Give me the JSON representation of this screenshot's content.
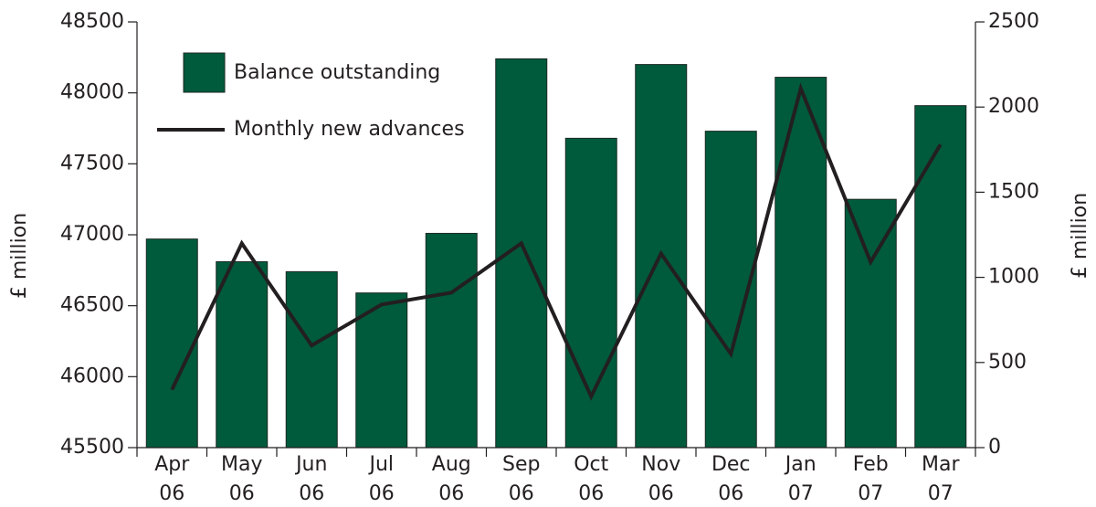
{
  "chart_data": {
    "type": "bar_line",
    "categories": [
      [
        "Apr",
        "06"
      ],
      [
        "May",
        "06"
      ],
      [
        "Jun",
        "06"
      ],
      [
        "Jul",
        "06"
      ],
      [
        "Aug",
        "06"
      ],
      [
        "Sep",
        "06"
      ],
      [
        "Oct",
        "06"
      ],
      [
        "Nov",
        "06"
      ],
      [
        "Dec",
        "06"
      ],
      [
        "Jan",
        "07"
      ],
      [
        "Feb",
        "07"
      ],
      [
        "Mar",
        "07"
      ]
    ],
    "series": [
      {
        "name": "Balance outstanding",
        "type": "bar",
        "color": "#005a3c",
        "values": [
          46970,
          46810,
          46740,
          46590,
          47010,
          48240,
          47680,
          48200,
          47730,
          48110,
          47250,
          47910
        ]
      },
      {
        "name": "Monthly new advances",
        "type": "line",
        "axis": "y2",
        "color": "#231f20",
        "values": [
          340,
          1200,
          600,
          840,
          910,
          1200,
          300,
          1140,
          550,
          2110,
          1090,
          1780
        ]
      }
    ],
    "ylabel": "£ million",
    "y2label": "£ million",
    "ylim": [
      45500,
      48500
    ],
    "yticks": [
      45500,
      46000,
      46500,
      47000,
      47500,
      48000,
      48500
    ],
    "y2lim": [
      0,
      2500
    ],
    "y2ticks": [
      0,
      500,
      1000,
      1500,
      2000,
      2500
    ],
    "legend": "top-left"
  }
}
